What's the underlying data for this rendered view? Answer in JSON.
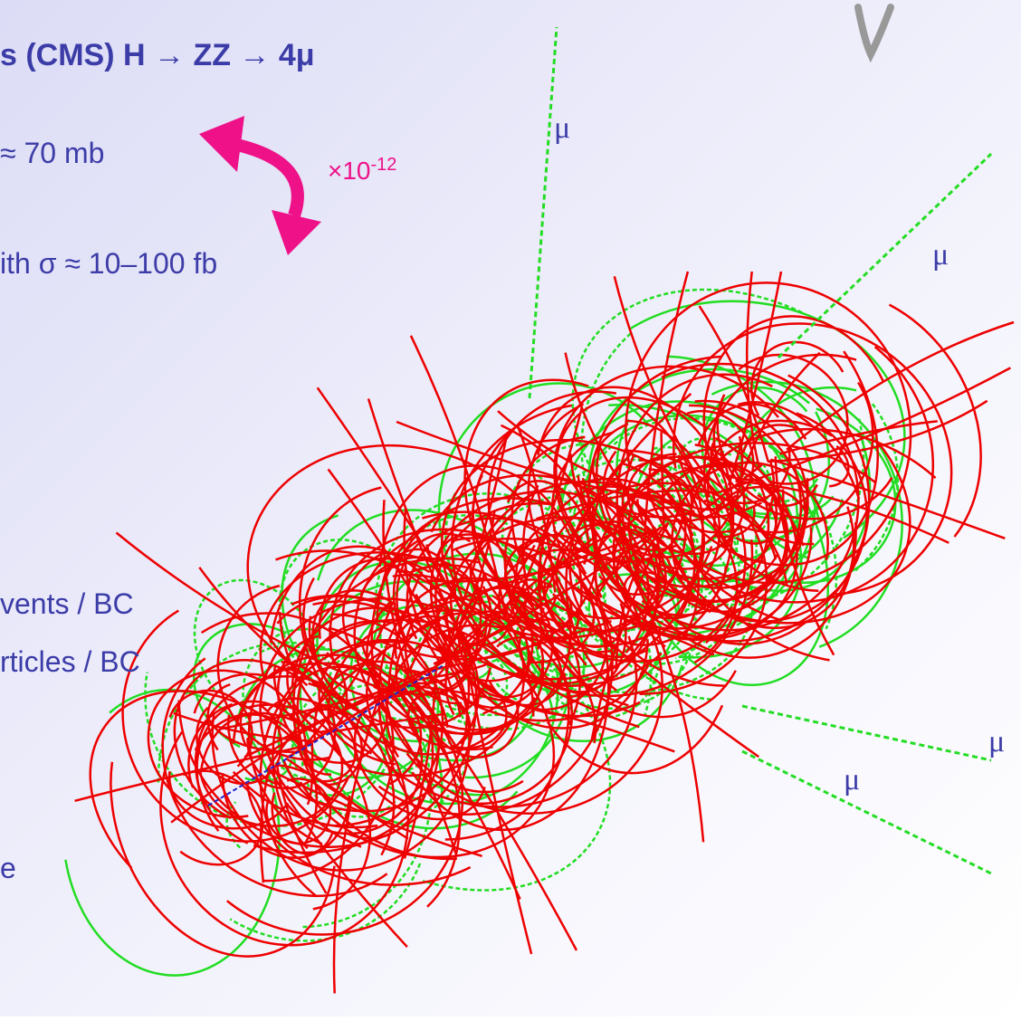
{
  "slide": {
    "title": "s (CMS)  H → ZZ → 4μ",
    "lines": [
      "≈ 70 mb",
      "ith σ ≈ 10–100 fb",
      "vents / BC",
      "rticles / BC",
      "e"
    ],
    "scale_factor": {
      "base": "×10",
      "exponent": "-12"
    },
    "muon_labels": [
      "μ",
      "μ",
      "μ",
      "μ"
    ]
  }
}
